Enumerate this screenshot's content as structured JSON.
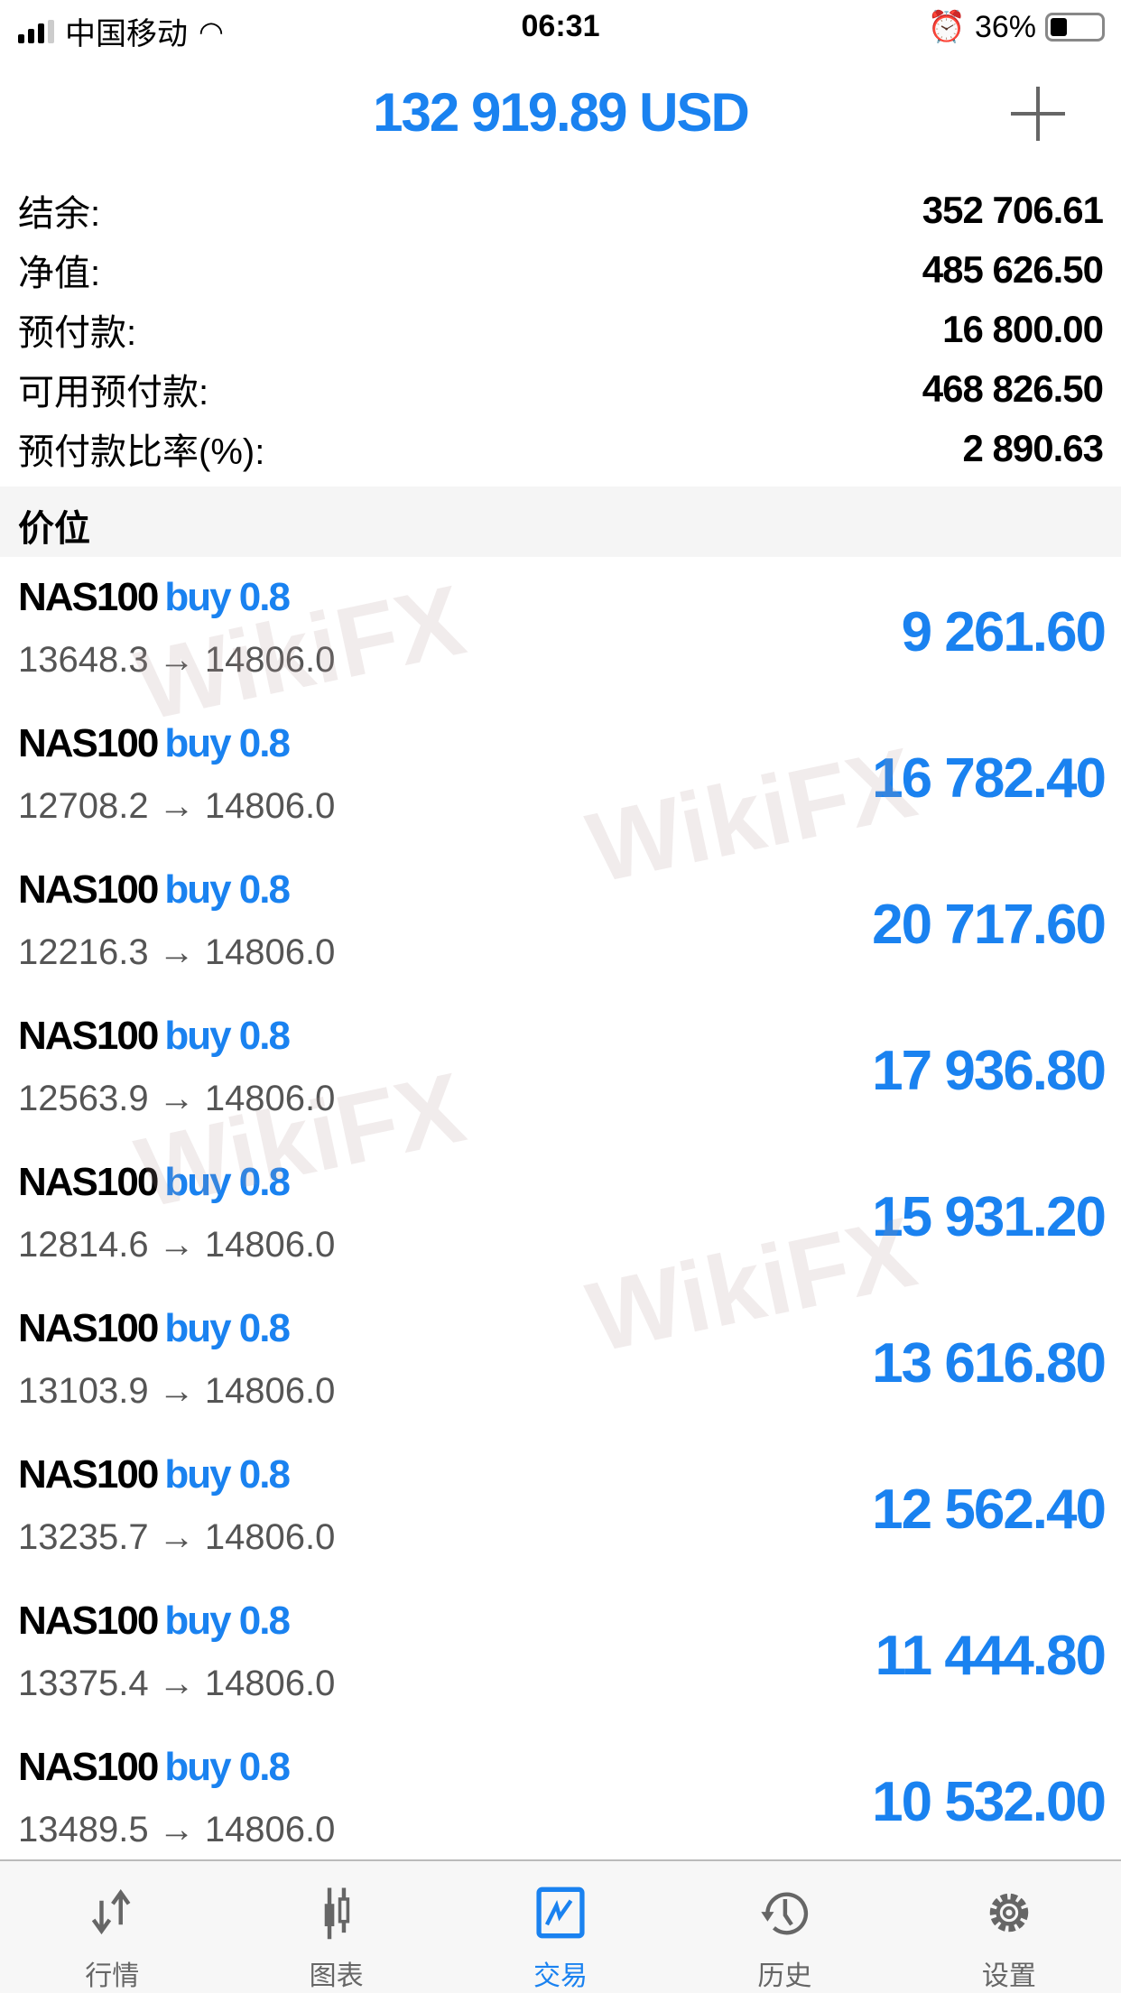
{
  "status": {
    "carrier": "中国移动",
    "time": "06:31",
    "battery": "36%"
  },
  "header": {
    "title": "132 919.89 USD",
    "add_icon": "plus-icon"
  },
  "summary": [
    {
      "label": "结余:",
      "value": "352 706.61"
    },
    {
      "label": "净值:",
      "value": "485 626.50"
    },
    {
      "label": "预付款:",
      "value": "16 800.00"
    },
    {
      "label": "可用预付款:",
      "value": "468 826.50"
    },
    {
      "label": "预付款比率(%):",
      "value": "2 890.63"
    }
  ],
  "section": {
    "title": "价位"
  },
  "positions": [
    {
      "symbol": "NAS100",
      "side": "buy 0.8",
      "prices": "13648.3 → 14806.0",
      "profit": "9 261.60"
    },
    {
      "symbol": "NAS100",
      "side": "buy 0.8",
      "prices": "12708.2 → 14806.0",
      "profit": "16 782.40"
    },
    {
      "symbol": "NAS100",
      "side": "buy 0.8",
      "prices": "12216.3 → 14806.0",
      "profit": "20 717.60"
    },
    {
      "symbol": "NAS100",
      "side": "buy 0.8",
      "prices": "12563.9 → 14806.0",
      "profit": "17 936.80"
    },
    {
      "symbol": "NAS100",
      "side": "buy 0.8",
      "prices": "12814.6 → 14806.0",
      "profit": "15 931.20"
    },
    {
      "symbol": "NAS100",
      "side": "buy 0.8",
      "prices": "13103.9 → 14806.0",
      "profit": "13 616.80"
    },
    {
      "symbol": "NAS100",
      "side": "buy 0.8",
      "prices": "13235.7 → 14806.0",
      "profit": "12 562.40"
    },
    {
      "symbol": "NAS100",
      "side": "buy 0.8",
      "prices": "13375.4 → 14806.0",
      "profit": "11 444.80"
    },
    {
      "symbol": "NAS100",
      "side": "buy 0.8",
      "prices": "13489.5 → 14806.0",
      "profit": "10 532.00"
    }
  ],
  "watermark": "WikiFX",
  "tabs": [
    {
      "label": "行情",
      "icon": "arrows-updown-icon"
    },
    {
      "label": "图表",
      "icon": "candlestick-icon"
    },
    {
      "label": "交易",
      "icon": "trade-chart-icon",
      "active": true
    },
    {
      "label": "历史",
      "icon": "history-icon"
    },
    {
      "label": "设置",
      "icon": "gear-icon"
    }
  ],
  "colors": {
    "accent": "#1a82f0",
    "tab_inactive": "#666666"
  }
}
